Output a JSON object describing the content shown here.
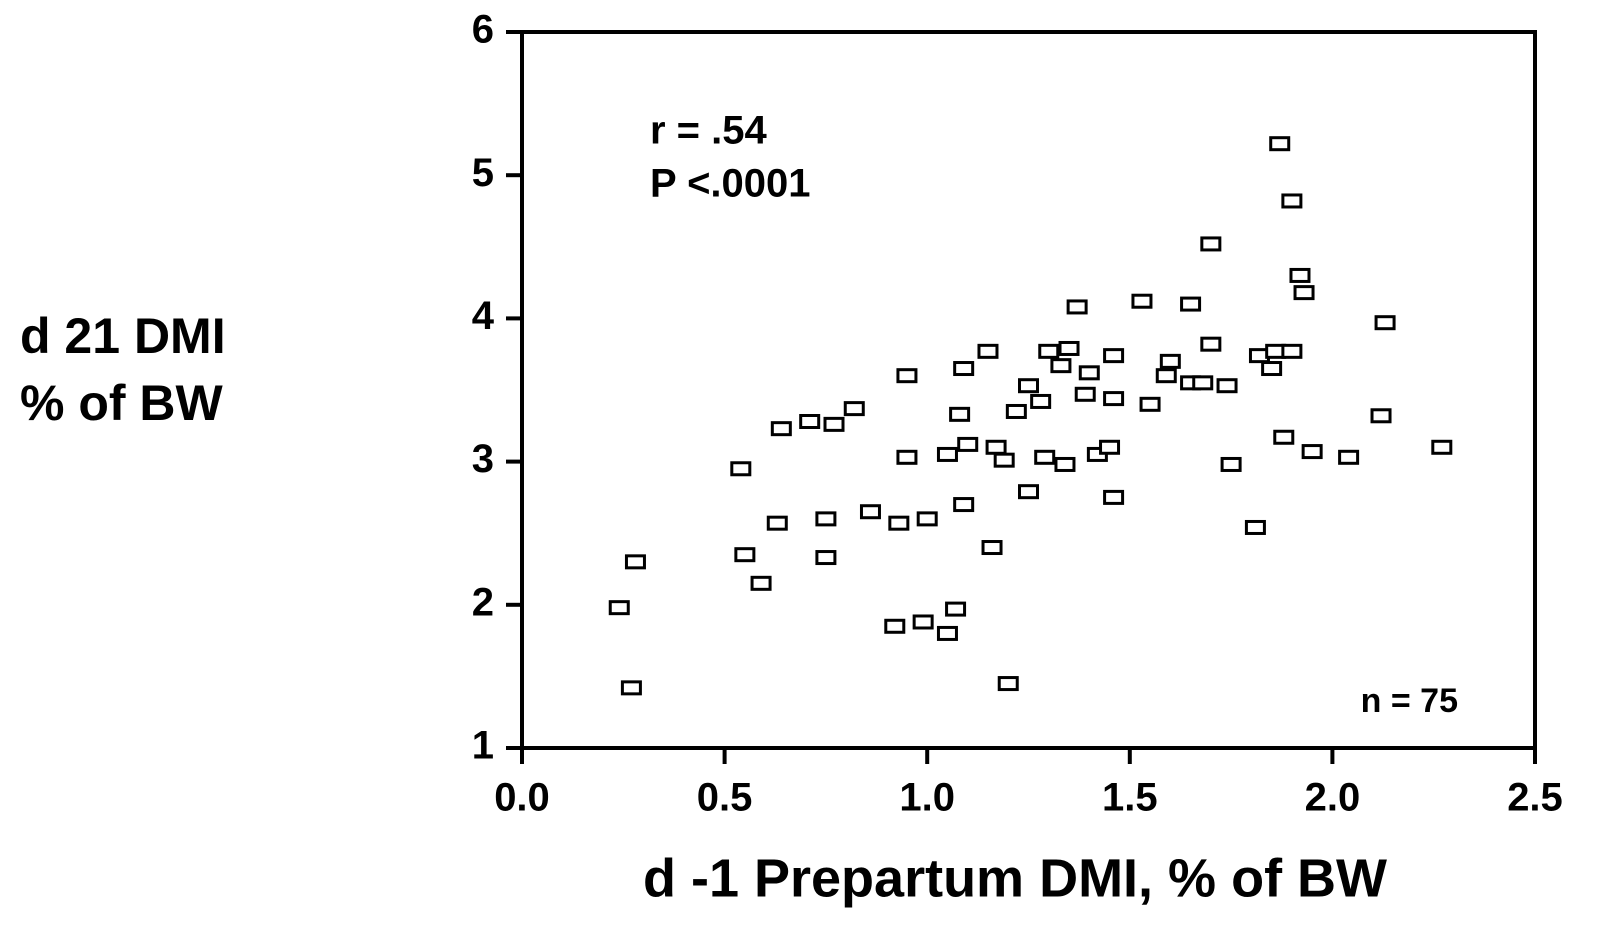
{
  "chart_data": {
    "type": "scatter",
    "xlabel": "d -1 Prepartum DMI, % of BW",
    "ylabel": [
      "d 21 DMI",
      "% of BW"
    ],
    "annotations": [
      "r = .54",
      "P <.0001",
      "n = 75"
    ],
    "xlim": [
      0,
      2.5
    ],
    "ylim": [
      1,
      6
    ],
    "xticks": [
      {
        "value": 0,
        "label": "0.0"
      },
      0.5,
      {
        "value": 1,
        "label": "1.0"
      },
      1.5,
      {
        "value": 2,
        "label": "2.0"
      },
      2.5
    ],
    "yticks": [
      1,
      2,
      3,
      4,
      5,
      6
    ],
    "marker_color": "#000000",
    "x": [
      0.24,
      0.28,
      0.27,
      0.54,
      0.55,
      0.59,
      0.63,
      0.64,
      0.71,
      0.75,
      0.75,
      0.77,
      0.82,
      0.86,
      0.92,
      0.93,
      0.95,
      0.95,
      0.99,
      1.0,
      1.05,
      1.05,
      1.07,
      1.08,
      1.09,
      1.09,
      1.1,
      1.15,
      1.16,
      1.17,
      1.19,
      1.2,
      1.22,
      1.25,
      1.25,
      1.28,
      1.29,
      1.3,
      1.33,
      1.34,
      1.35,
      1.37,
      1.4,
      1.39,
      1.42,
      1.46,
      1.46,
      1.45,
      1.46,
      1.53,
      1.55,
      1.59,
      1.6,
      1.65,
      1.65,
      1.68,
      1.7,
      1.7,
      1.74,
      1.75,
      1.81,
      1.82,
      1.85,
      1.86,
      1.87,
      1.88,
      1.9,
      1.9,
      1.92,
      1.93,
      1.95,
      2.04,
      2.12,
      2.13,
      2.27
    ],
    "values": [
      1.98,
      2.3,
      1.42,
      2.95,
      2.35,
      2.15,
      2.57,
      3.23,
      3.28,
      2.6,
      2.33,
      3.26,
      3.37,
      2.65,
      1.85,
      2.57,
      3.6,
      3.03,
      1.88,
      2.6,
      3.05,
      1.8,
      1.97,
      3.33,
      3.65,
      2.7,
      3.12,
      3.77,
      2.4,
      3.1,
      3.01,
      1.45,
      3.35,
      3.53,
      2.79,
      3.42,
      3.03,
      3.77,
      3.67,
      2.98,
      3.79,
      4.08,
      3.62,
      3.47,
      3.05,
      3.74,
      3.44,
      3.1,
      2.75,
      4.12,
      3.4,
      3.6,
      3.7,
      4.1,
      3.55,
      3.55,
      4.52,
      3.82,
      3.53,
      2.98,
      2.54,
      3.74,
      3.65,
      3.77,
      5.22,
      3.17,
      4.82,
      3.77,
      4.3,
      4.18,
      3.07,
      3.03,
      3.32,
      3.97,
      3.1
    ]
  }
}
